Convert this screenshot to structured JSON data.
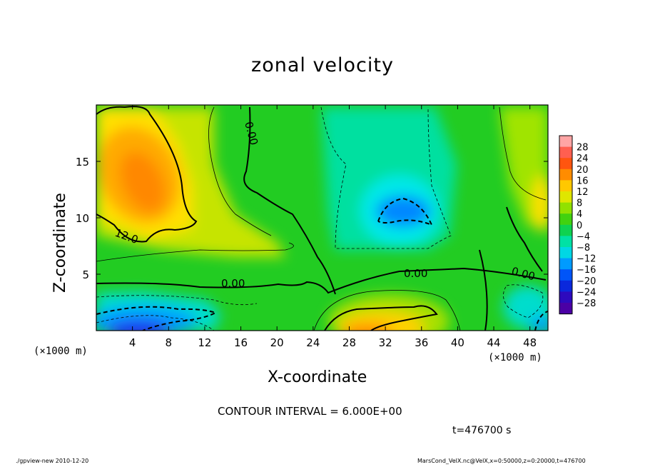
{
  "chart_data": {
    "type": "heatmap",
    "title": "zonal velocity",
    "xlabel": "X-coordinate",
    "ylabel": "Z-coordinate",
    "x_unit_note": "(×1000 m)",
    "y_unit_note": "(×1000 m)",
    "xlim": [
      0,
      50
    ],
    "ylim": [
      0,
      20
    ],
    "x_ticks": [
      4,
      8,
      12,
      16,
      20,
      24,
      28,
      32,
      36,
      40,
      44,
      48
    ],
    "y_ticks": [
      5,
      10,
      15
    ],
    "colorbar_levels": [
      28,
      24,
      20,
      16,
      12,
      8,
      4,
      0,
      -4,
      -8,
      -12,
      -16,
      -20,
      -24,
      -28
    ],
    "contour_interval_text": "CONTOUR INTERVAL = 6.000E+00",
    "contour_labels": [
      "12.0",
      "0.00",
      "0.00",
      "0.00",
      "0.00"
    ],
    "grid": false,
    "legend": "colorbar right",
    "features": [
      {
        "kind": "max",
        "x": 5,
        "z": 13.5,
        "value": 15
      },
      {
        "kind": "min",
        "x": 33,
        "z": 10.5,
        "value": -13
      },
      {
        "kind": "min",
        "x": 4,
        "z": 0.5,
        "value": -22
      },
      {
        "kind": "max",
        "x": 31,
        "z": 0.5,
        "value": 15
      }
    ]
  },
  "time_label": "t=476700 s",
  "footer_left": "./gpview-new  2010-12-20",
  "footer_right": "MarsCond_VelX.nc@VelX,x=0:50000,z=0:20000,t=476700"
}
